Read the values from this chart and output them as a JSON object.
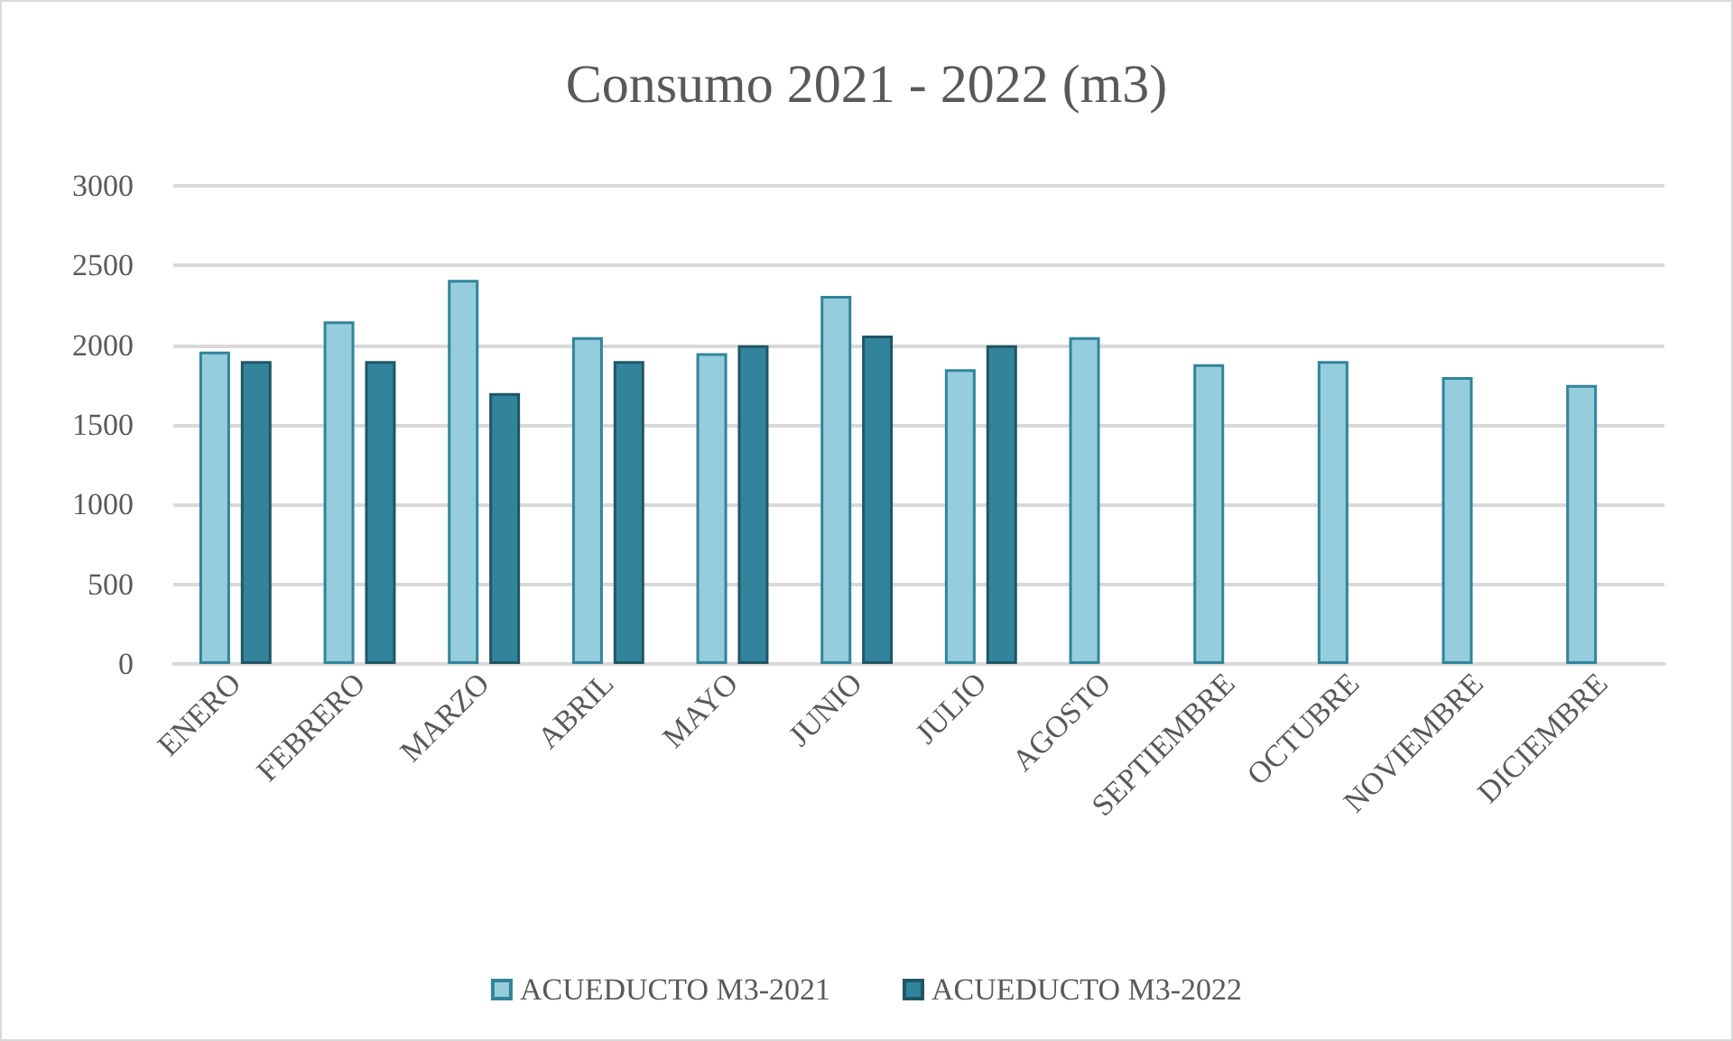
{
  "chart_data": {
    "type": "bar",
    "title": "Consumo 2021 - 2022 (m3)",
    "categories": [
      "ENERO",
      "FEBRERO",
      "MARZO",
      "ABRIL",
      "MAYO",
      "JUNIO",
      "JULIO",
      "AGOSTO",
      "SEPTIEMBRE",
      "OCTUBRE",
      "NOVIEMBRE",
      "DICIEMBRE"
    ],
    "series": [
      {
        "name": "ACUEDUCTO M3-2021",
        "color": "#95cddd",
        "values": [
          1960,
          2150,
          2410,
          2050,
          1950,
          2310,
          1850,
          2050,
          1880,
          1900,
          1800,
          1750
        ]
      },
      {
        "name": "ACUEDUCTO M3-2022",
        "color": "#31849b",
        "values": [
          1900,
          1900,
          1700,
          1900,
          2000,
          2060,
          2000,
          null,
          null,
          null,
          null,
          null
        ]
      }
    ],
    "ylim": [
      0,
      3000
    ],
    "yticks": [
      0,
      500,
      1000,
      1500,
      2000,
      2500,
      3000
    ],
    "grid": "y",
    "legend": "bottom"
  }
}
